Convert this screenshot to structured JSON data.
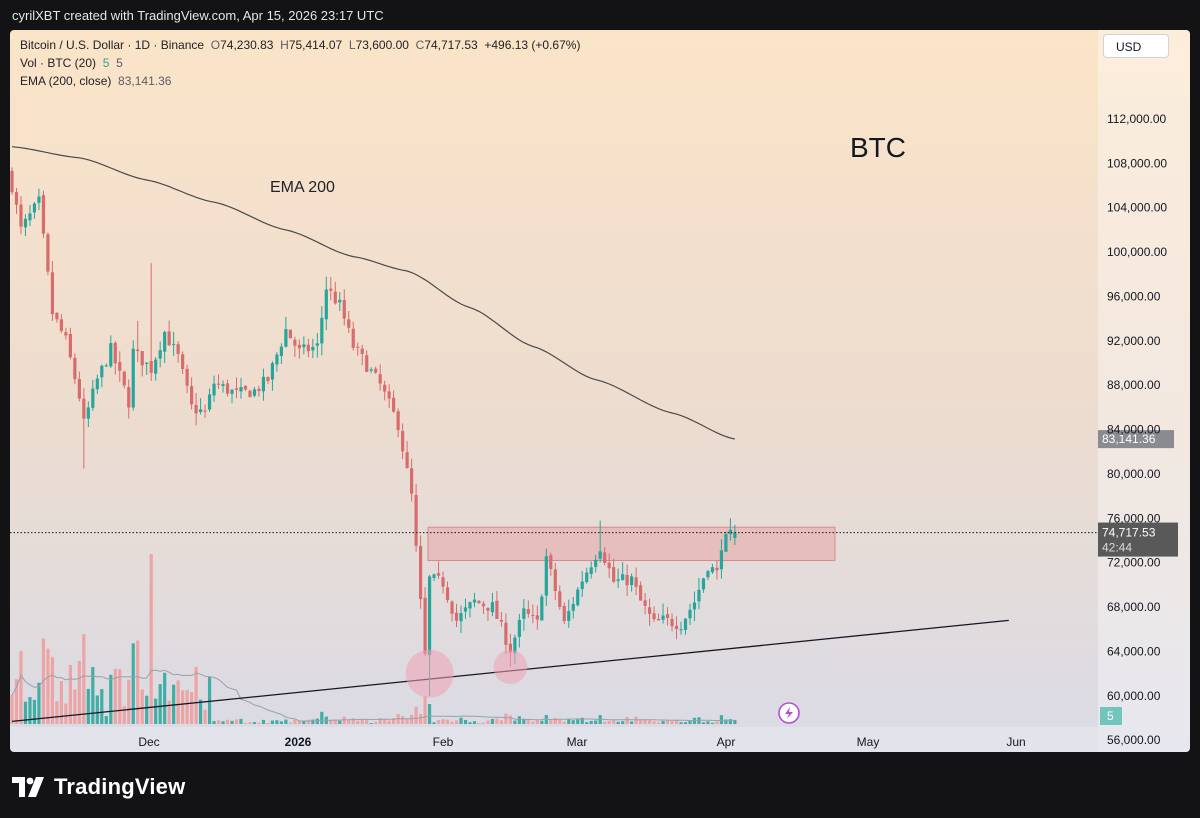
{
  "credit": "cyrilXBT created with TradingView.com, Apr 15, 2026 23:17 UTC",
  "legend": {
    "symbol": "Bitcoin / U.S. Dollar · 1D · Binance",
    "o_label": "O",
    "o": "74,230.83",
    "h_label": "H",
    "h": "75,414.07",
    "l_label": "L",
    "l": "73,600.00",
    "c_label": "C",
    "c": "74,717.53",
    "change": "+496.13 (+0.67%)",
    "vol_title": "Vol · BTC (20)",
    "vol_value": "5",
    "vol_ma": "5",
    "ema_title": "EMA (200, close)",
    "ema_value": "83,141.36"
  },
  "currency_button": "USD",
  "brand": "TradingView",
  "icons": {
    "logo": "tradingview-logo-icon",
    "replay": "lightning-replay-icon"
  },
  "chart_data": {
    "type": "candlestick",
    "title": "BTC",
    "annotations": [
      "EMA 200",
      "BTC"
    ],
    "x_ticks": [
      "Dec",
      "2026",
      "Feb",
      "Mar",
      "Apr",
      "May",
      "Jun"
    ],
    "y_ticks": [
      "112,000.00",
      "108,000.00",
      "104,000.00",
      "100,000.00",
      "96,000.00",
      "92,000.00",
      "88,000.00",
      "84,000.00",
      "80,000.00",
      "76,000.00",
      "72,000.00",
      "68,000.00",
      "64,000.00",
      "60,000.00",
      "56,000.00"
    ],
    "y_range": [
      55000,
      115000
    ],
    "price_labels": {
      "ema": "83,141.36",
      "last": "74,717.53",
      "countdown": "42:44",
      "volume": "5"
    },
    "resistance_zone": [
      72200,
      75200
    ],
    "trendline": [
      {
        "date": "2025-11-05",
        "price": 57700
      },
      {
        "date": "2026-06-15",
        "price": 66800
      }
    ],
    "highlight_lows": [
      {
        "date": "2026-02-06",
        "price": 62000
      },
      {
        "date": "2026-02-24",
        "price": 62600
      }
    ],
    "close_path": [
      [
        "2025-11-05",
        106000
      ],
      [
        "2025-11-07",
        102000
      ],
      [
        "2025-11-11",
        104500
      ],
      [
        "2025-11-14",
        94500
      ],
      [
        "2025-11-17",
        92000
      ],
      [
        "2025-11-20",
        87000
      ],
      [
        "2025-11-21",
        84500
      ],
      [
        "2025-11-24",
        88500
      ],
      [
        "2025-11-27",
        91200
      ],
      [
        "2025-12-01",
        86500
      ],
      [
        "2025-12-02",
        91000
      ],
      [
        "2025-12-06",
        89500
      ],
      [
        "2025-12-09",
        92800
      ],
      [
        "2025-12-12",
        90500
      ],
      [
        "2025-12-15",
        86000
      ],
      [
        "2025-12-18",
        85500
      ],
      [
        "2025-12-20",
        88200
      ],
      [
        "2025-12-25",
        87200
      ],
      [
        "2025-12-29",
        87500
      ],
      [
        "2026-01-01",
        88500
      ],
      [
        "2026-01-05",
        93000
      ],
      [
        "2026-01-08",
        91000
      ],
      [
        "2026-01-12",
        91500
      ],
      [
        "2026-01-14",
        96800
      ],
      [
        "2026-01-17",
        95200
      ],
      [
        "2026-01-20",
        91500
      ],
      [
        "2026-01-23",
        89800
      ],
      [
        "2026-01-26",
        88000
      ],
      [
        "2026-01-30",
        84500
      ],
      [
        "2026-02-02",
        78000
      ],
      [
        "2026-02-05",
        63500
      ],
      [
        "2026-02-06",
        70500
      ],
      [
        "2026-02-09",
        70200
      ],
      [
        "2026-02-12",
        66800
      ],
      [
        "2026-02-16",
        68500
      ],
      [
        "2026-02-20",
        68000
      ],
      [
        "2026-02-24",
        64200
      ],
      [
        "2026-02-27",
        67500
      ],
      [
        "2026-03-02",
        66500
      ],
      [
        "2026-03-04",
        72500
      ],
      [
        "2026-03-08",
        66500
      ],
      [
        "2026-03-12",
        70500
      ],
      [
        "2026-03-16",
        73500
      ],
      [
        "2026-03-19",
        70300
      ],
      [
        "2026-03-23",
        70500
      ],
      [
        "2026-03-25",
        68500
      ],
      [
        "2026-03-28",
        66500
      ],
      [
        "2026-03-30",
        66800
      ],
      [
        "2026-04-03",
        66500
      ],
      [
        "2026-04-06",
        68500
      ],
      [
        "2026-04-09",
        71800
      ],
      [
        "2026-04-11",
        71000
      ],
      [
        "2026-04-12",
        73700
      ],
      [
        "2026-04-15",
        74717.53
      ]
    ],
    "ema_200": [
      [
        "2025-11-05",
        109500
      ],
      [
        "2025-11-20",
        108500
      ],
      [
        "2025-12-05",
        106500
      ],
      [
        "2025-12-20",
        104500
      ],
      [
        "2026-01-05",
        102000
      ],
      [
        "2026-01-20",
        99600
      ],
      [
        "2026-02-01",
        98300
      ],
      [
        "2026-02-15",
        95000
      ],
      [
        "2026-03-01",
        91500
      ],
      [
        "2026-03-15",
        88500
      ],
      [
        "2026-04-01",
        85500
      ],
      [
        "2026-04-15",
        83141.36
      ]
    ]
  }
}
